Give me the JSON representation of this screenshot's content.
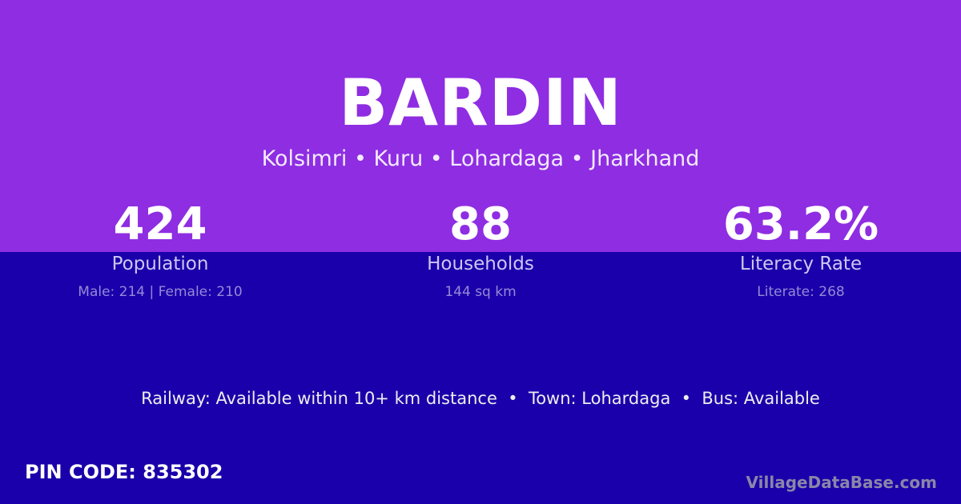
{
  "village_name": "BARDIN",
  "location": "Kolsimri • Kuru • Lohardaga • Jharkhand",
  "stats": [
    {
      "value": "424",
      "label": "Population",
      "detail": "Male: 214 | Female: 210"
    },
    {
      "value": "88",
      "label": "Households",
      "detail": "144 sq km"
    },
    {
      "value": "63.2%",
      "label": "Literacy Rate",
      "detail": "Literate: 268"
    }
  ],
  "facts": "Railway: Available within 10+ km distance  •  Town: Lohardaga  •  Bus: Available",
  "pin_code": "PIN CODE: 835302",
  "brand": "VillageDataBase.com",
  "colors": {
    "top": "#8e2de2",
    "bottom": "#1a00aa"
  }
}
